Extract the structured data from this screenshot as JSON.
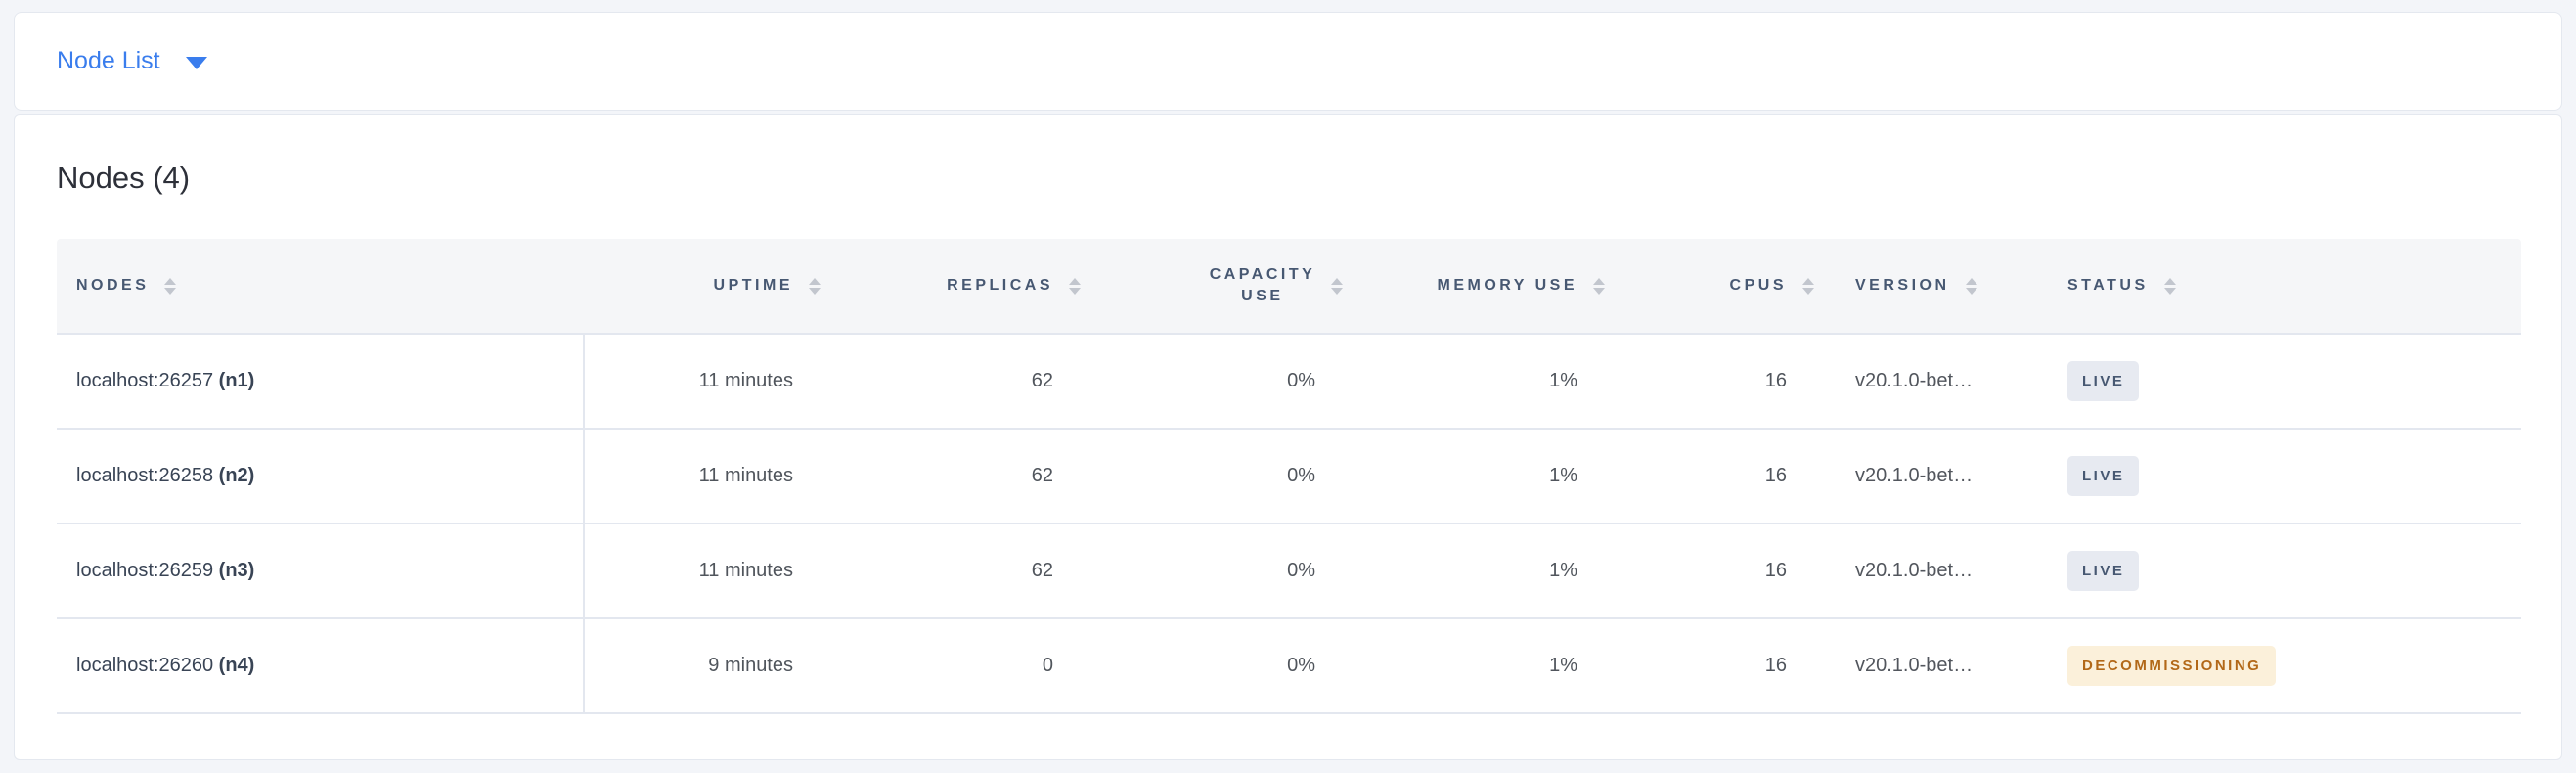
{
  "toolbar": {
    "dropdown_label": "Node List"
  },
  "panel": {
    "title": "Nodes (4)"
  },
  "table": {
    "columns": {
      "nodes": {
        "label": "NODES"
      },
      "uptime": {
        "label": "UPTIME"
      },
      "replicas": {
        "label": "REPLICAS"
      },
      "capacity": {
        "label": "CAPACITY USE"
      },
      "memory": {
        "label": "MEMORY USE"
      },
      "cpus": {
        "label": "CPUS"
      },
      "version": {
        "label": "VERSION"
      },
      "status": {
        "label": "STATUS"
      }
    },
    "rows": [
      {
        "address": "localhost:26257",
        "node_id": "(n1)",
        "uptime": "11 minutes",
        "replicas": "62",
        "capacity_use": "0%",
        "memory_use": "1%",
        "cpus": "16",
        "version": "v20.1.0-bet…",
        "status": "LIVE"
      },
      {
        "address": "localhost:26258",
        "node_id": "(n2)",
        "uptime": "11 minutes",
        "replicas": "62",
        "capacity_use": "0%",
        "memory_use": "1%",
        "cpus": "16",
        "version": "v20.1.0-bet…",
        "status": "LIVE"
      },
      {
        "address": "localhost:26259",
        "node_id": "(n3)",
        "uptime": "11 minutes",
        "replicas": "62",
        "capacity_use": "0%",
        "memory_use": "1%",
        "cpus": "16",
        "version": "v20.1.0-bet…",
        "status": "LIVE"
      },
      {
        "address": "localhost:26260",
        "node_id": "(n4)",
        "uptime": "9 minutes",
        "replicas": "0",
        "capacity_use": "0%",
        "memory_use": "1%",
        "cpus": "16",
        "version": "v20.1.0-bet…",
        "status": "DECOMMISSIONING"
      }
    ]
  },
  "colors": {
    "accent_blue": "#3a7ded",
    "header_text": "#475872",
    "live_badge_bg": "#e7eaf1",
    "live_badge_text": "#475872",
    "decommissioning_badge_bg": "#fbf0da",
    "decommissioning_badge_text": "#b26818",
    "page_background": "#f3f5f9",
    "divider": "#e3e7ef"
  }
}
